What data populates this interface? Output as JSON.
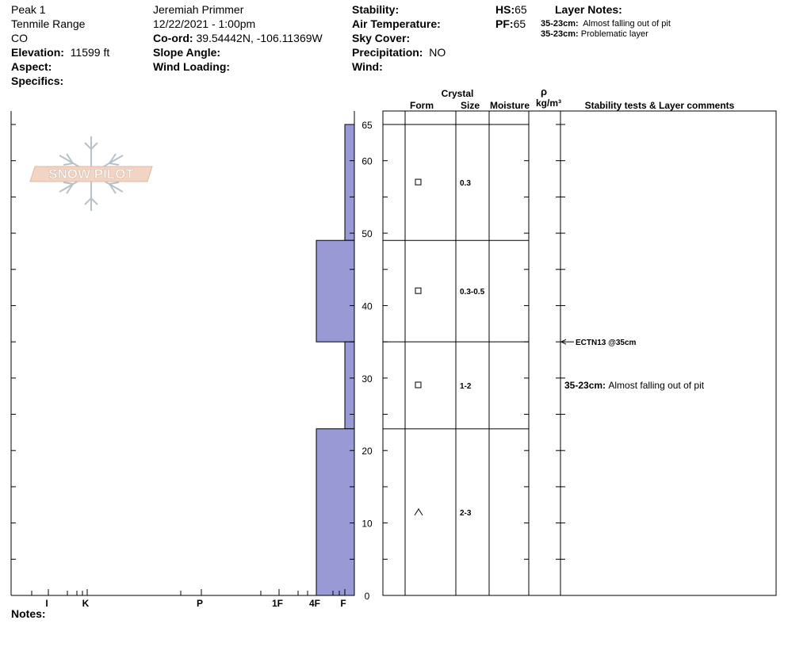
{
  "header": {
    "location": "Peak 1",
    "range": "Tenmile Range",
    "state": "CO",
    "elevation_label": "Elevation:",
    "elevation_value": "11599 ft",
    "aspect_label": "Aspect:",
    "specifics_label": "Specifics:",
    "observer": "Jeremiah Primmer",
    "datetime": "12/22/2021 - 1:00pm",
    "coord_label": "Co-ord:",
    "coord_value": "39.54442N, -106.11369W",
    "slope_label": "Slope Angle:",
    "wind_loading_label": "Wind Loading:",
    "stability_label": "Stability:",
    "air_temp_label": "Air Temperature:",
    "sky_cover_label": "Sky Cover:",
    "precip_label": "Precipitation:",
    "precip_value": "NO",
    "wind_label": "Wind:",
    "hs_label": "HS:",
    "hs_value": "65",
    "pf_label": "PF:",
    "pf_value": "65",
    "layer_notes_title": "Layer Notes:",
    "layer_notes": [
      {
        "range": "35-23cm:",
        "text": "Almost falling out of pit"
      },
      {
        "range": "35-23cm:",
        "text": "Problematic layer"
      }
    ]
  },
  "logo_text": "SNOW PILOT",
  "notes_label": "Notes:",
  "columns": {
    "crystal": "Crystal",
    "form": "Form",
    "size": "Size",
    "moisture": "Moisture",
    "rho": "ρ",
    "density_unit": "kg/m³",
    "comments": "Stability tests & Layer comments"
  },
  "chart_data": {
    "type": "bar",
    "title": "",
    "ylabel": "",
    "xlabel": "",
    "ylim": [
      0,
      65
    ],
    "y_ticks": [
      0,
      10,
      20,
      30,
      40,
      50,
      60,
      65
    ],
    "hardness_scale": [
      "F",
      "4F",
      "1F",
      "P",
      "K",
      "I"
    ],
    "hardness_ticks": [
      "I",
      "K",
      "P",
      "1F",
      "4F",
      "F"
    ],
    "bar_color": "#9999d6",
    "hardness_layers": [
      {
        "top": 65,
        "bottom": 49,
        "hardness": "F"
      },
      {
        "top": 49,
        "bottom": 35,
        "hardness": "4F"
      },
      {
        "top": 35,
        "bottom": 23,
        "hardness": "F"
      },
      {
        "top": 23,
        "bottom": 0,
        "hardness": "4F"
      }
    ],
    "crystal_layers": [
      {
        "top": 65,
        "bottom": 49,
        "form": "square",
        "size": "0.3"
      },
      {
        "top": 49,
        "bottom": 35,
        "form": "square",
        "size": "0.3-0.5"
      },
      {
        "top": 35,
        "bottom": 23,
        "form": "square",
        "size": "1-2"
      },
      {
        "top": 23,
        "bottom": 0,
        "form": "caret",
        "size": "2-3"
      }
    ],
    "stability_tests": [
      {
        "depth": 35,
        "label": "ECTN13 @35cm"
      }
    ],
    "layer_comments": [
      {
        "depth": 29,
        "range": "35-23cm:",
        "text": "Almost falling out of pit"
      }
    ]
  }
}
